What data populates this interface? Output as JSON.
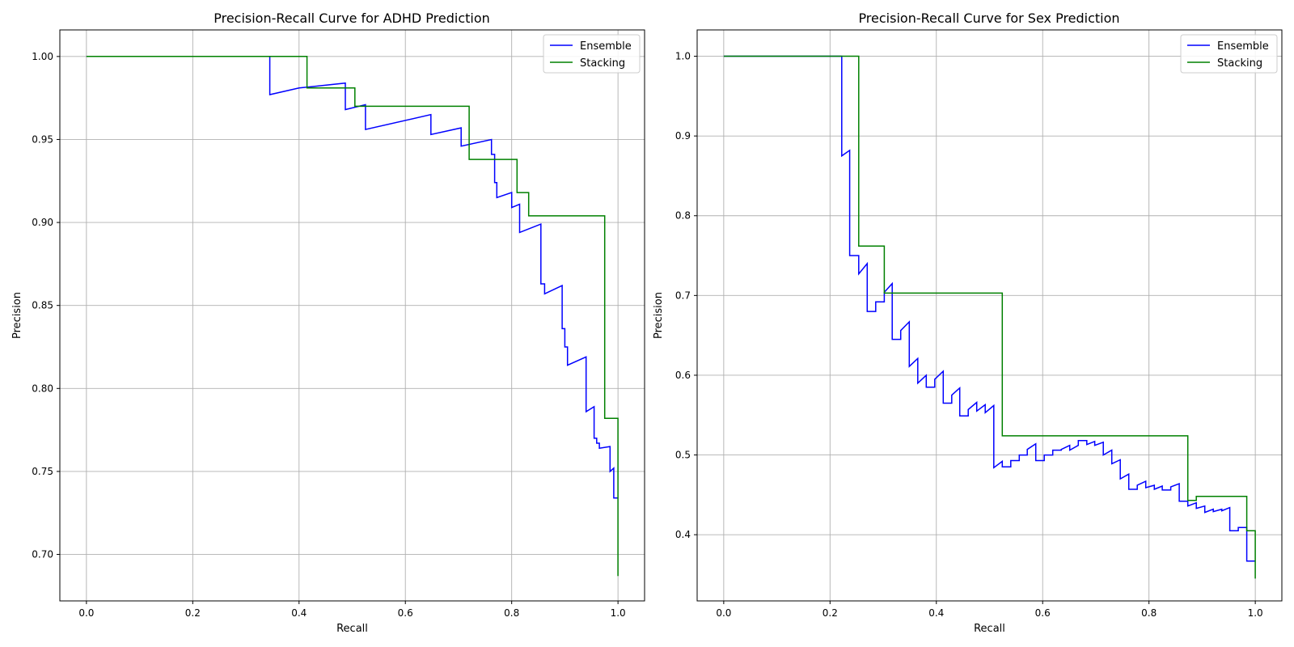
{
  "chart_data": [
    {
      "type": "line",
      "step": true,
      "title": "Precision-Recall Curve for ADHD Prediction",
      "xlabel": "Recall",
      "ylabel": "Precision",
      "xlim": [
        -0.05,
        1.05
      ],
      "ylim": [
        0.672,
        1.016
      ],
      "xticks": [
        0.0,
        0.2,
        0.4,
        0.6,
        0.8,
        1.0
      ],
      "xtick_labels": [
        "0.0",
        "0.2",
        "0.4",
        "0.6",
        "0.8",
        "1.0"
      ],
      "yticks": [
        0.7,
        0.75,
        0.8,
        0.85,
        0.9,
        0.95,
        1.0
      ],
      "ytick_labels": [
        "0.70",
        "0.75",
        "0.80",
        "0.85",
        "0.90",
        "0.95",
        "1.00"
      ],
      "grid": true,
      "legend": "top-right",
      "series": [
        {
          "name": "Ensemble",
          "color": "#0000ff",
          "points": [
            [
              0.0,
              1.0
            ],
            [
              0.345,
              1.0
            ],
            [
              0.345,
              0.977
            ],
            [
              0.4,
              0.981
            ],
            [
              0.487,
              0.984
            ],
            [
              0.487,
              0.968
            ],
            [
              0.525,
              0.971
            ],
            [
              0.525,
              0.956
            ],
            [
              0.648,
              0.965
            ],
            [
              0.648,
              0.953
            ],
            [
              0.705,
              0.957
            ],
            [
              0.705,
              0.946
            ],
            [
              0.762,
              0.95
            ],
            [
              0.762,
              0.941
            ],
            [
              0.768,
              0.941
            ],
            [
              0.768,
              0.924
            ],
            [
              0.772,
              0.924
            ],
            [
              0.772,
              0.915
            ],
            [
              0.8,
              0.918
            ],
            [
              0.8,
              0.909
            ],
            [
              0.815,
              0.911
            ],
            [
              0.815,
              0.894
            ],
            [
              0.855,
              0.899
            ],
            [
              0.855,
              0.863
            ],
            [
              0.862,
              0.863
            ],
            [
              0.862,
              0.857
            ],
            [
              0.895,
              0.862
            ],
            [
              0.895,
              0.836
            ],
            [
              0.9,
              0.836
            ],
            [
              0.9,
              0.825
            ],
            [
              0.905,
              0.825
            ],
            [
              0.905,
              0.814
            ],
            [
              0.94,
              0.819
            ],
            [
              0.94,
              0.786
            ],
            [
              0.955,
              0.789
            ],
            [
              0.955,
              0.77
            ],
            [
              0.96,
              0.77
            ],
            [
              0.96,
              0.767
            ],
            [
              0.965,
              0.767
            ],
            [
              0.965,
              0.764
            ],
            [
              0.985,
              0.765
            ],
            [
              0.985,
              0.75
            ],
            [
              0.992,
              0.752
            ],
            [
              0.992,
              0.734
            ],
            [
              1.0,
              0.734
            ]
          ]
        },
        {
          "name": "Stacking",
          "color": "#008000",
          "points": [
            [
              0.0,
              1.0
            ],
            [
              0.415,
              1.0
            ],
            [
              0.415,
              0.981
            ],
            [
              0.505,
              0.981
            ],
            [
              0.505,
              0.97
            ],
            [
              0.72,
              0.97
            ],
            [
              0.72,
              0.938
            ],
            [
              0.81,
              0.938
            ],
            [
              0.81,
              0.918
            ],
            [
              0.832,
              0.918
            ],
            [
              0.832,
              0.904
            ],
            [
              0.975,
              0.904
            ],
            [
              0.975,
              0.782
            ],
            [
              1.0,
              0.782
            ],
            [
              1.0,
              0.687
            ]
          ]
        }
      ]
    },
    {
      "type": "line",
      "step": true,
      "title": "Precision-Recall Curve for Sex Prediction",
      "xlabel": "Recall",
      "ylabel": "Precision",
      "xlim": [
        -0.05,
        1.05
      ],
      "ylim": [
        0.317,
        1.033
      ],
      "xticks": [
        0.0,
        0.2,
        0.4,
        0.6,
        0.8,
        1.0
      ],
      "xtick_labels": [
        "0.0",
        "0.2",
        "0.4",
        "0.6",
        "0.8",
        "1.0"
      ],
      "yticks": [
        0.4,
        0.5,
        0.6,
        0.7,
        0.8,
        0.9,
        1.0
      ],
      "ytick_labels": [
        "0.4",
        "0.5",
        "0.6",
        "0.7",
        "0.8",
        "0.9",
        "1.0"
      ],
      "grid": true,
      "legend": "top-right",
      "series": [
        {
          "name": "Ensemble",
          "color": "#0000ff",
          "points": [
            [
              0.0,
              1.0
            ],
            [
              0.222,
              1.0
            ],
            [
              0.222,
              0.875
            ],
            [
              0.237,
              0.882
            ],
            [
              0.237,
              0.75
            ],
            [
              0.254,
              0.75
            ],
            [
              0.254,
              0.727
            ],
            [
              0.27,
              0.74
            ],
            [
              0.27,
              0.68
            ],
            [
              0.286,
              0.68
            ],
            [
              0.286,
              0.692
            ],
            [
              0.302,
              0.692
            ],
            [
              0.302,
              0.704
            ],
            [
              0.317,
              0.715
            ],
            [
              0.317,
              0.645
            ],
            [
              0.333,
              0.645
            ],
            [
              0.333,
              0.656
            ],
            [
              0.349,
              0.667
            ],
            [
              0.349,
              0.611
            ],
            [
              0.365,
              0.621
            ],
            [
              0.365,
              0.59
            ],
            [
              0.381,
              0.6
            ],
            [
              0.381,
              0.585
            ],
            [
              0.397,
              0.585
            ],
            [
              0.397,
              0.595
            ],
            [
              0.413,
              0.605
            ],
            [
              0.413,
              0.565
            ],
            [
              0.429,
              0.565
            ],
            [
              0.429,
              0.575
            ],
            [
              0.444,
              0.584
            ],
            [
              0.444,
              0.549
            ],
            [
              0.46,
              0.549
            ],
            [
              0.46,
              0.557
            ],
            [
              0.476,
              0.566
            ],
            [
              0.476,
              0.555
            ],
            [
              0.492,
              0.563
            ],
            [
              0.492,
              0.553
            ],
            [
              0.508,
              0.562
            ],
            [
              0.508,
              0.484
            ],
            [
              0.524,
              0.492
            ],
            [
              0.524,
              0.485
            ],
            [
              0.54,
              0.485
            ],
            [
              0.54,
              0.493
            ],
            [
              0.556,
              0.493
            ],
            [
              0.556,
              0.5
            ],
            [
              0.571,
              0.5
            ],
            [
              0.571,
              0.507
            ],
            [
              0.587,
              0.514
            ],
            [
              0.587,
              0.493
            ],
            [
              0.603,
              0.493
            ],
            [
              0.603,
              0.5
            ],
            [
              0.619,
              0.5
            ],
            [
              0.619,
              0.506
            ],
            [
              0.635,
              0.506
            ],
            [
              0.635,
              0.507
            ],
            [
              0.651,
              0.512
            ],
            [
              0.651,
              0.506
            ],
            [
              0.667,
              0.512
            ],
            [
              0.667,
              0.518
            ],
            [
              0.683,
              0.518
            ],
            [
              0.683,
              0.513
            ],
            [
              0.698,
              0.517
            ],
            [
              0.698,
              0.512
            ],
            [
              0.714,
              0.516
            ],
            [
              0.714,
              0.5
            ],
            [
              0.73,
              0.506
            ],
            [
              0.73,
              0.489
            ],
            [
              0.746,
              0.494
            ],
            [
              0.746,
              0.47
            ],
            [
              0.762,
              0.476
            ],
            [
              0.762,
              0.457
            ],
            [
              0.778,
              0.457
            ],
            [
              0.778,
              0.462
            ],
            [
              0.794,
              0.467
            ],
            [
              0.794,
              0.459
            ],
            [
              0.81,
              0.462
            ],
            [
              0.81,
              0.457
            ],
            [
              0.825,
              0.461
            ],
            [
              0.825,
              0.456
            ],
            [
              0.841,
              0.456
            ],
            [
              0.841,
              0.46
            ],
            [
              0.857,
              0.464
            ],
            [
              0.857,
              0.442
            ],
            [
              0.873,
              0.442
            ],
            [
              0.873,
              0.436
            ],
            [
              0.889,
              0.44
            ],
            [
              0.889,
              0.433
            ],
            [
              0.905,
              0.436
            ],
            [
              0.905,
              0.428
            ],
            [
              0.921,
              0.432
            ],
            [
              0.921,
              0.429
            ],
            [
              0.937,
              0.432
            ],
            [
              0.937,
              0.43
            ],
            [
              0.952,
              0.434
            ],
            [
              0.952,
              0.405
            ],
            [
              0.968,
              0.405
            ],
            [
              0.968,
              0.409
            ],
            [
              0.984,
              0.409
            ],
            [
              0.984,
              0.367
            ],
            [
              1.0,
              0.367
            ]
          ]
        },
        {
          "name": "Stacking",
          "color": "#008000",
          "points": [
            [
              0.0,
              1.0
            ],
            [
              0.254,
              1.0
            ],
            [
              0.254,
              0.762
            ],
            [
              0.302,
              0.762
            ],
            [
              0.302,
              0.703
            ],
            [
              0.524,
              0.703
            ],
            [
              0.524,
              0.524
            ],
            [
              0.873,
              0.524
            ],
            [
              0.873,
              0.443
            ],
            [
              0.889,
              0.443
            ],
            [
              0.889,
              0.448
            ],
            [
              0.984,
              0.448
            ],
            [
              0.984,
              0.405
            ],
            [
              1.0,
              0.405
            ],
            [
              1.0,
              0.345
            ]
          ]
        }
      ]
    }
  ]
}
